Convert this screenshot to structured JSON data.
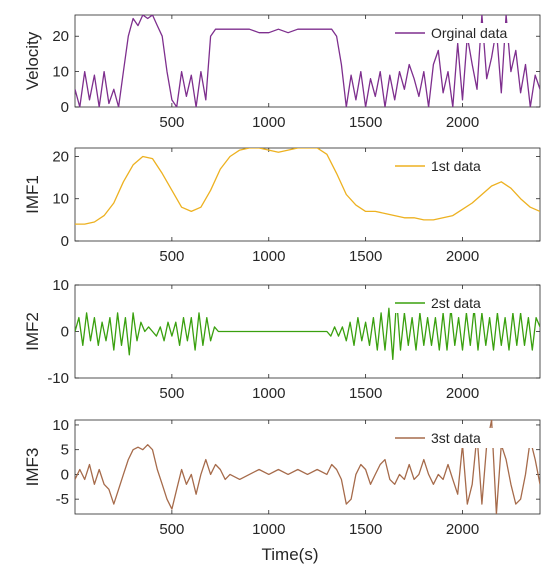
{
  "chart_data": [
    {
      "type": "line",
      "ylabel": "Velocity",
      "xlim": [
        0,
        2400
      ],
      "ylim": [
        0,
        26
      ],
      "yticks": [
        0,
        10,
        20
      ],
      "xticks": [
        500,
        1000,
        1500,
        2000
      ],
      "legend": "top-right",
      "series": [
        {
          "name": "Orginal data",
          "color": "#7E2F8E",
          "x": [
            0,
            25,
            50,
            75,
            100,
            125,
            150,
            175,
            200,
            225,
            250,
            275,
            300,
            325,
            350,
            375,
            400,
            425,
            450,
            475,
            500,
            525,
            550,
            575,
            600,
            625,
            650,
            675,
            700,
            725,
            750,
            800,
            850,
            900,
            950,
            1000,
            1050,
            1100,
            1150,
            1200,
            1250,
            1300,
            1325,
            1350,
            1375,
            1400,
            1425,
            1450,
            1475,
            1500,
            1525,
            1550,
            1575,
            1600,
            1625,
            1650,
            1675,
            1700,
            1725,
            1750,
            1775,
            1800,
            1825,
            1850,
            1875,
            1900,
            1925,
            1950,
            1975,
            2000,
            2025,
            2050,
            2075,
            2100,
            2125,
            2150,
            2175,
            2200,
            2225,
            2250,
            2275,
            2300,
            2325,
            2350,
            2375,
            2400
          ],
          "y": [
            5,
            0,
            10,
            2,
            9,
            0,
            10,
            1,
            5,
            0,
            10,
            20,
            25,
            23,
            26,
            25,
            26,
            23,
            20,
            10,
            2,
            0,
            10,
            3,
            9,
            0,
            10,
            2,
            20,
            22,
            22,
            22,
            22,
            22,
            21,
            21,
            22,
            21,
            22,
            22,
            22,
            22,
            22,
            20,
            12,
            0,
            9,
            2,
            10,
            0,
            8,
            3,
            10,
            0,
            9,
            2,
            10,
            5,
            12,
            8,
            3,
            10,
            0,
            12,
            16,
            4,
            10,
            0,
            18,
            2,
            20,
            12,
            5,
            26,
            8,
            14,
            22,
            4,
            26,
            10,
            16,
            4,
            12,
            0,
            9,
            5
          ]
        }
      ]
    },
    {
      "type": "line",
      "ylabel": "IMF1",
      "xlim": [
        0,
        2400
      ],
      "ylim": [
        0,
        22
      ],
      "yticks": [
        0,
        10,
        20
      ],
      "xticks": [
        500,
        1000,
        1500,
        2000
      ],
      "legend": "top-right",
      "series": [
        {
          "name": "1st data",
          "color": "#EDB120",
          "x": [
            0,
            50,
            100,
            150,
            200,
            250,
            300,
            350,
            400,
            450,
            500,
            550,
            600,
            650,
            700,
            750,
            800,
            850,
            900,
            950,
            1000,
            1050,
            1100,
            1150,
            1200,
            1250,
            1300,
            1350,
            1400,
            1450,
            1500,
            1550,
            1600,
            1650,
            1700,
            1750,
            1800,
            1850,
            1900,
            1950,
            2000,
            2050,
            2100,
            2150,
            2200,
            2250,
            2300,
            2350,
            2400
          ],
          "y": [
            4,
            4,
            4.5,
            6,
            9,
            14,
            18,
            20,
            19.5,
            16,
            12,
            8,
            7,
            8,
            12,
            17,
            20,
            21.5,
            22,
            22,
            21.5,
            21,
            21.5,
            22,
            22,
            22,
            20.5,
            16,
            11,
            8.5,
            7,
            7,
            6.5,
            6,
            5.5,
            5.5,
            5,
            5,
            5.5,
            6,
            7.5,
            9,
            11,
            13,
            14,
            12.5,
            10,
            8,
            7
          ]
        }
      ]
    },
    {
      "type": "line",
      "ylabel": "IMF2",
      "xlim": [
        0,
        2400
      ],
      "ylim": [
        -10,
        10
      ],
      "yticks": [
        -10,
        0,
        10
      ],
      "xticks": [
        500,
        1000,
        1500,
        2000
      ],
      "legend": "top-right",
      "series": [
        {
          "name": "2st data",
          "color": "#3AA00F",
          "x": [
            0,
            20,
            40,
            60,
            80,
            100,
            120,
            140,
            160,
            180,
            200,
            220,
            240,
            260,
            280,
            300,
            320,
            340,
            360,
            380,
            400,
            420,
            440,
            460,
            480,
            500,
            520,
            540,
            560,
            580,
            600,
            620,
            640,
            660,
            680,
            700,
            720,
            740,
            760,
            800,
            850,
            900,
            950,
            1000,
            1050,
            1100,
            1150,
            1200,
            1250,
            1300,
            1320,
            1340,
            1360,
            1380,
            1400,
            1420,
            1440,
            1460,
            1480,
            1500,
            1520,
            1540,
            1560,
            1580,
            1600,
            1620,
            1640,
            1660,
            1680,
            1700,
            1720,
            1740,
            1760,
            1780,
            1800,
            1820,
            1840,
            1860,
            1880,
            1900,
            1920,
            1940,
            1960,
            1980,
            2000,
            2020,
            2040,
            2060,
            2080,
            2100,
            2120,
            2140,
            2160,
            2180,
            2200,
            2220,
            2240,
            2260,
            2280,
            2300,
            2320,
            2340,
            2360,
            2380,
            2400
          ],
          "y": [
            0,
            3,
            -3,
            4,
            -2,
            3,
            -3,
            2,
            -2,
            3,
            -4,
            4,
            -3,
            3,
            -5,
            4,
            -2,
            2,
            0,
            1,
            0,
            -1,
            1,
            -2,
            2,
            -1,
            2,
            -3,
            3,
            -2,
            3,
            -4,
            4,
            -3,
            3,
            -2,
            1,
            0,
            0,
            0,
            0,
            0,
            0,
            0,
            0,
            0,
            0,
            0,
            0,
            0,
            -1,
            1,
            -1,
            1,
            -2,
            2,
            -3,
            3,
            -2,
            2,
            -3,
            3,
            -4,
            4,
            -4,
            5,
            -6,
            7,
            -4,
            4,
            -3,
            3,
            -4,
            4,
            -3,
            3,
            -3,
            3,
            -4,
            4,
            -4,
            5,
            -3,
            3,
            -4,
            4,
            -3,
            5,
            -4,
            4,
            -3,
            3,
            -4,
            4,
            -3,
            3,
            -4,
            4,
            -3,
            4,
            -3,
            3,
            -4,
            3,
            1
          ]
        }
      ]
    },
    {
      "type": "line",
      "ylabel": "IMF3",
      "xlabel": "Time(s)",
      "xlim": [
        0,
        2400
      ],
      "ylim": [
        -8,
        11
      ],
      "yticks": [
        -5,
        0,
        5,
        10
      ],
      "xticks": [
        500,
        1000,
        1500,
        2000
      ],
      "legend": "top-right",
      "series": [
        {
          "name": "3st data",
          "color": "#A66B4B",
          "x": [
            0,
            25,
            50,
            75,
            100,
            125,
            150,
            175,
            200,
            225,
            250,
            275,
            300,
            325,
            350,
            375,
            400,
            425,
            450,
            475,
            500,
            525,
            550,
            575,
            600,
            625,
            650,
            675,
            700,
            725,
            750,
            775,
            800,
            850,
            900,
            950,
            1000,
            1050,
            1100,
            1150,
            1200,
            1250,
            1300,
            1325,
            1350,
            1375,
            1400,
            1425,
            1450,
            1475,
            1500,
            1525,
            1550,
            1575,
            1600,
            1625,
            1650,
            1675,
            1700,
            1725,
            1750,
            1775,
            1800,
            1825,
            1850,
            1875,
            1900,
            1925,
            1950,
            1975,
            2000,
            2025,
            2050,
            2075,
            2100,
            2125,
            2150,
            2175,
            2200,
            2225,
            2250,
            2275,
            2300,
            2325,
            2350,
            2375,
            2400
          ],
          "y": [
            -1,
            1,
            -1,
            2,
            -2,
            1,
            -2,
            -3,
            -6,
            -3,
            0,
            3,
            5,
            5.5,
            5,
            6,
            5,
            1,
            -2,
            -5,
            -7,
            -3,
            1,
            -2,
            0,
            -4,
            0,
            3,
            0,
            2,
            1,
            -1,
            0,
            -1,
            0,
            1,
            0,
            1,
            0,
            1,
            0,
            1,
            0,
            2,
            1,
            -1,
            -6,
            -5,
            0,
            2,
            1,
            -2,
            0,
            2,
            3,
            -1,
            -2,
            0,
            -1,
            2,
            -1,
            0,
            3,
            0,
            -2,
            0,
            -1,
            2,
            -1,
            -4,
            6,
            -6,
            -2,
            8,
            -6,
            6,
            11,
            -8,
            6,
            3,
            -2,
            -6,
            -5,
            0,
            7,
            3,
            -2
          ]
        }
      ]
    }
  ]
}
